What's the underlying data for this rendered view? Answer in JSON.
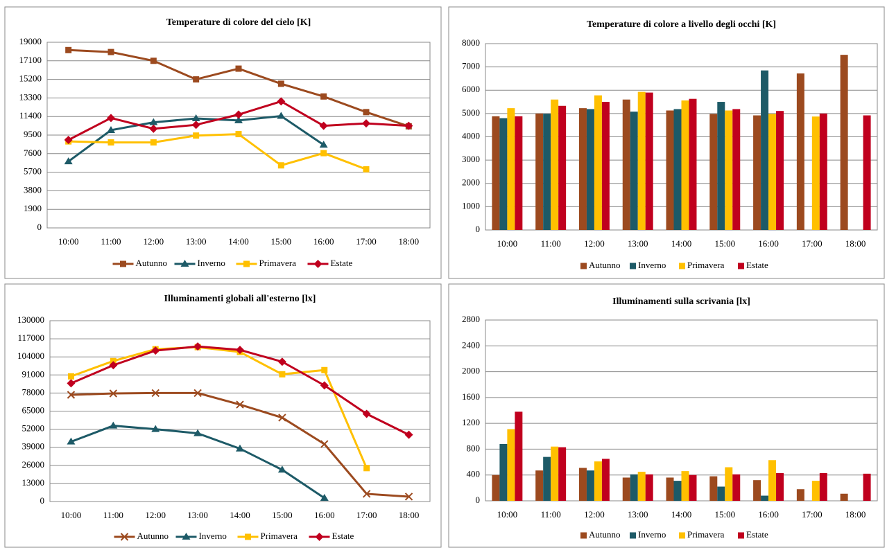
{
  "chart_data": [
    {
      "type": "line",
      "title": "Temperature di colore del cielo [K]",
      "categories": [
        "10:00",
        "11:00",
        "12:00",
        "13:00",
        "14:00",
        "15:00",
        "16:00",
        "17:00",
        "18:00"
      ],
      "ylim": [
        0,
        19000
      ],
      "yticks": [
        0,
        1900,
        3800,
        5700,
        7600,
        9500,
        11400,
        13300,
        15200,
        17100,
        19000
      ],
      "grid": true,
      "legend": "bottom",
      "series": [
        {
          "name": "Autunno",
          "color": "#9c4a1f",
          "marker": "square",
          "values": [
            18200,
            18000,
            17100,
            15200,
            16300,
            14750,
            13450,
            11850,
            10400
          ]
        },
        {
          "name": "Inverno",
          "color": "#1d5a67",
          "marker": "triangle",
          "values": [
            6800,
            10000,
            10800,
            11200,
            11000,
            11450,
            8500,
            null,
            null
          ]
        },
        {
          "name": "Primavera",
          "color": "#ffc000",
          "marker": "square",
          "values": [
            8850,
            8750,
            8750,
            9450,
            9600,
            6400,
            7650,
            6000,
            null
          ]
        },
        {
          "name": "Estate",
          "color": "#c0001e",
          "marker": "diamond",
          "values": [
            9000,
            11250,
            10150,
            10550,
            11600,
            12950,
            10450,
            10700,
            10450
          ]
        }
      ]
    },
    {
      "type": "bar",
      "title": "Temperature di colore a livello degli occhi [K]",
      "categories": [
        "10:00",
        "11:00",
        "12:00",
        "13:00",
        "14:00",
        "15:00",
        "16:00",
        "17:00",
        "18:00"
      ],
      "ylim": [
        0,
        8000
      ],
      "yticks": [
        0,
        1000,
        2000,
        3000,
        4000,
        5000,
        6000,
        7000,
        8000
      ],
      "grid": true,
      "legend": "bottom",
      "series": [
        {
          "name": "Autunno",
          "color": "#9c4a1f",
          "values": [
            4880,
            5000,
            5230,
            5600,
            5130,
            4980,
            4920,
            6720,
            7520
          ]
        },
        {
          "name": "Inverno",
          "color": "#1d5a67",
          "values": [
            4800,
            4990,
            5190,
            5080,
            5190,
            5500,
            6850,
            null,
            null
          ]
        },
        {
          "name": "Primavera",
          "color": "#ffc000",
          "values": [
            5230,
            5600,
            5780,
            5930,
            5560,
            5130,
            4980,
            4870,
            null
          ]
        },
        {
          "name": "Estate",
          "color": "#c0001e",
          "values": [
            4880,
            5330,
            5500,
            5900,
            5630,
            5190,
            5110,
            5000,
            4920
          ]
        }
      ]
    },
    {
      "type": "line",
      "title": "Illuminamenti globali all'esterno [lx]",
      "categories": [
        "10:00",
        "11:00",
        "12:00",
        "13:00",
        "14:00",
        "15:00",
        "16:00",
        "17:00",
        "18:00"
      ],
      "ylim": [
        0,
        130000
      ],
      "yticks": [
        0,
        13000,
        26000,
        39000,
        52000,
        65000,
        78000,
        91000,
        104000,
        117000,
        130000
      ],
      "grid": true,
      "legend": "bottom",
      "series": [
        {
          "name": "Autunno",
          "color": "#9c4a1f",
          "marker": "x",
          "values": [
            76700,
            77700,
            78000,
            78000,
            69700,
            60300,
            41300,
            5500,
            3500
          ]
        },
        {
          "name": "Inverno",
          "color": "#1d5a67",
          "marker": "triangle",
          "values": [
            43000,
            54500,
            52000,
            49000,
            38000,
            22800,
            2500,
            null,
            null
          ]
        },
        {
          "name": "Primavera",
          "color": "#ffc000",
          "marker": "square",
          "values": [
            90000,
            101000,
            109500,
            111000,
            107500,
            91500,
            94500,
            24000,
            null
          ]
        },
        {
          "name": "Estate",
          "color": "#c0001e",
          "marker": "diamond",
          "values": [
            85000,
            98000,
            108500,
            111500,
            109000,
            100500,
            83500,
            63000,
            48000
          ]
        }
      ]
    },
    {
      "type": "bar",
      "title": "Illuminamenti sulla scrivania [lx]",
      "categories": [
        "10:00",
        "11:00",
        "12:00",
        "13:00",
        "14:00",
        "15:00",
        "16:00",
        "17:00",
        "18:00"
      ],
      "ylim": [
        0,
        2800
      ],
      "yticks": [
        0,
        400,
        800,
        1200,
        1600,
        2000,
        2400,
        2800
      ],
      "grid": true,
      "legend": "bottom",
      "series": [
        {
          "name": "Autunno",
          "color": "#9c4a1f",
          "values": [
            400,
            470,
            510,
            360,
            360,
            380,
            320,
            180,
            110
          ]
        },
        {
          "name": "Inverno",
          "color": "#1d5a67",
          "values": [
            880,
            680,
            470,
            410,
            310,
            220,
            80,
            null,
            null
          ]
        },
        {
          "name": "Primavera",
          "color": "#ffc000",
          "values": [
            1110,
            840,
            610,
            450,
            460,
            520,
            630,
            310,
            null
          ]
        },
        {
          "name": "Estate",
          "color": "#c0001e",
          "values": [
            1380,
            830,
            650,
            410,
            400,
            410,
            430,
            430,
            420
          ]
        }
      ]
    }
  ]
}
